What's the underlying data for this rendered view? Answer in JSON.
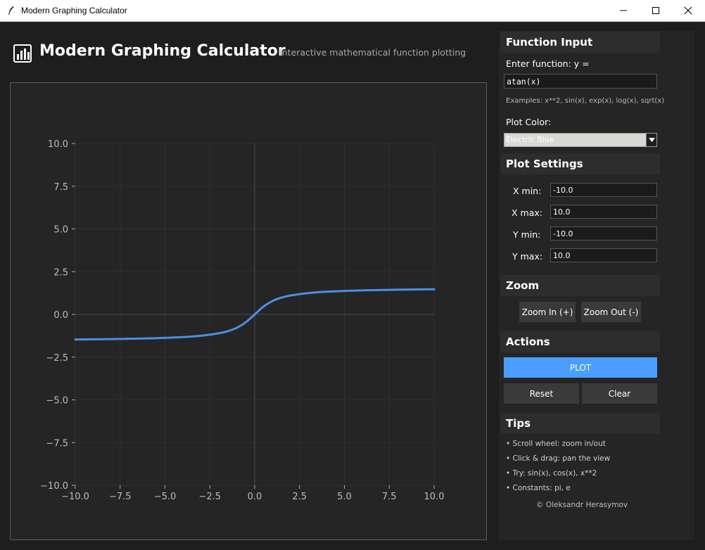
{
  "window": {
    "title": "Modern Graphing Calculator"
  },
  "header": {
    "title": "Modern Graphing Calculator",
    "subtitle": "Interactive mathematical function plotting"
  },
  "function_input": {
    "heading": "Function Input",
    "prompt": "Enter function: y =",
    "value": "atan(x)",
    "examples": "Examples: x**2, sin(x), exp(x), log(x), sqrt(x)",
    "color_label": "Plot Color:",
    "color_value": "Electric Blue"
  },
  "plot_settings": {
    "heading": "Plot Settings",
    "xmin_label": "X min:",
    "xmin": "-10.0",
    "xmax_label": "X max:",
    "xmax": "10.0",
    "ymin_label": "Y min:",
    "ymin": "-10.0",
    "ymax_label": "Y max:",
    "ymax": "10.0"
  },
  "zoom": {
    "heading": "Zoom",
    "zoom_in": "Zoom In (+)",
    "zoom_out": "Zoom Out (-)"
  },
  "actions": {
    "heading": "Actions",
    "plot": "PLOT",
    "reset": "Reset",
    "clear": "Clear"
  },
  "tips": {
    "heading": "Tips",
    "items": [
      "• Scroll wheel: zoom in/out",
      "• Click & drag: pan the view",
      "• Try: sin(x), cos(x), x**2",
      "• Constants: pi, e"
    ],
    "footer": "© Oleksandr Herasymov"
  },
  "colors": {
    "accent": "#4a90e2",
    "button_primary": "#4a9eff",
    "background": "#1e1e1e",
    "panel": "#252525"
  },
  "icons": [
    "feather-icon",
    "bar-chart-icon",
    "minimize-icon",
    "maximize-icon",
    "close-icon",
    "dropdown-arrow-icon"
  ],
  "chart_data": {
    "type": "line",
    "function": "atan(x)",
    "xlim": [
      -10,
      10
    ],
    "ylim": [
      -10,
      10
    ],
    "xticks": [
      -10.0,
      -7.5,
      -5.0,
      -2.5,
      0.0,
      2.5,
      5.0,
      7.5,
      10.0
    ],
    "yticks": [
      -10.0,
      -7.5,
      -5.0,
      -2.5,
      0.0,
      2.5,
      5.0,
      7.5,
      10.0
    ],
    "xtick_labels": [
      "−10.0",
      "−7.5",
      "−5.0",
      "−2.5",
      "0.0",
      "2.5",
      "5.0",
      "7.5",
      "10.0"
    ],
    "ytick_labels": [
      "−10.0",
      "−7.5",
      "−5.0",
      "−2.5",
      "0.0",
      "2.5",
      "5.0",
      "7.5",
      "10.0"
    ],
    "grid": true,
    "x": [
      -10,
      -8,
      -6,
      -4,
      -3,
      -2,
      -1.5,
      -1,
      -0.5,
      0,
      0.5,
      1,
      1.5,
      2,
      3,
      4,
      6,
      8,
      10
    ],
    "y": [
      -1.471,
      -1.446,
      -1.406,
      -1.326,
      -1.249,
      -1.107,
      -0.983,
      -0.785,
      -0.464,
      0,
      0.464,
      0.785,
      0.983,
      1.107,
      1.249,
      1.326,
      1.406,
      1.446,
      1.471
    ],
    "series_color": "#4a90e2"
  }
}
